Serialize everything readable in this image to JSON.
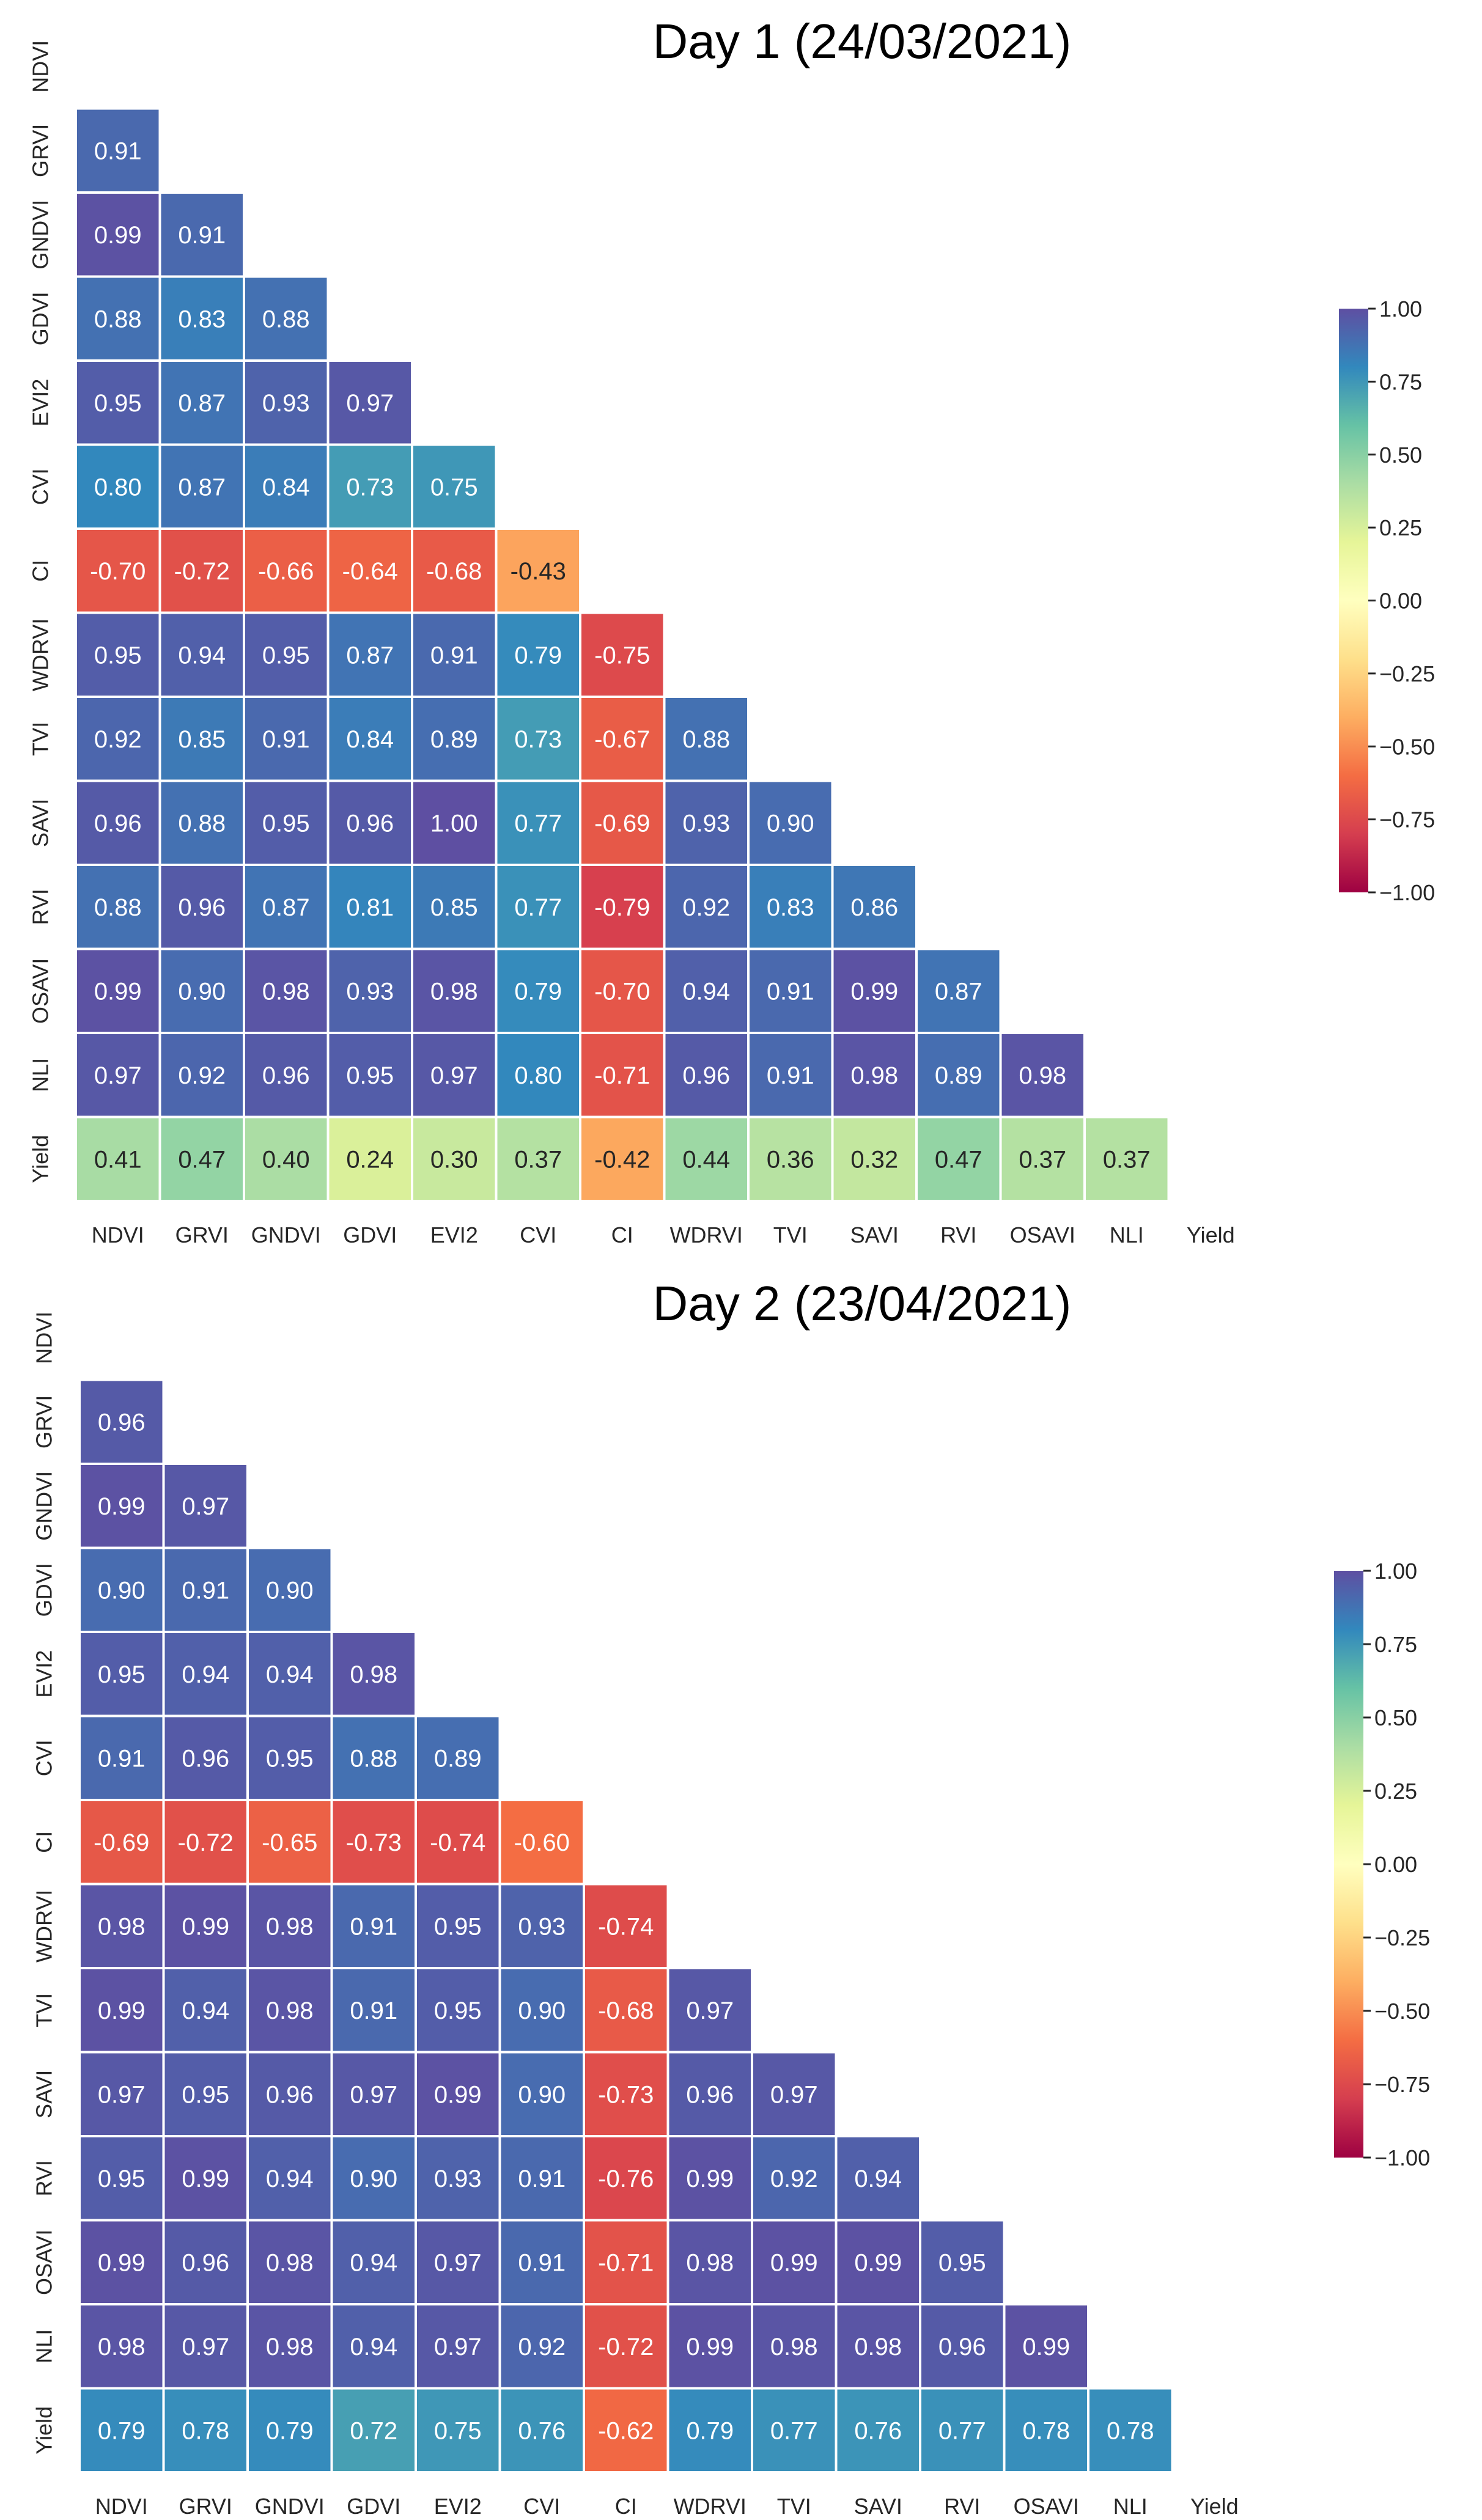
{
  "chart_data": [
    {
      "type": "heatmap",
      "title": "Day 1 (24/03/2021)",
      "labels": [
        "NDVI",
        "GRVI",
        "GNDVI",
        "GDVI",
        "EVI2",
        "CVI",
        "CI",
        "WDRVI",
        "TVI",
        "SAVI",
        "RVI",
        "OSAVI",
        "NLI",
        "Yield"
      ],
      "matrix": [
        [],
        [
          0.91
        ],
        [
          0.99,
          0.91
        ],
        [
          0.88,
          0.83,
          0.88
        ],
        [
          0.95,
          0.87,
          0.93,
          0.97
        ],
        [
          0.8,
          0.87,
          0.84,
          0.73,
          0.75
        ],
        [
          -0.7,
          -0.72,
          -0.66,
          -0.64,
          -0.68,
          -0.43
        ],
        [
          0.95,
          0.94,
          0.95,
          0.87,
          0.91,
          0.79,
          -0.75
        ],
        [
          0.92,
          0.85,
          0.91,
          0.84,
          0.89,
          0.73,
          -0.67,
          0.88
        ],
        [
          0.96,
          0.88,
          0.95,
          0.96,
          1.0,
          0.77,
          -0.69,
          0.93,
          0.9
        ],
        [
          0.88,
          0.96,
          0.87,
          0.81,
          0.85,
          0.77,
          -0.79,
          0.92,
          0.83,
          0.86
        ],
        [
          0.99,
          0.9,
          0.98,
          0.93,
          0.98,
          0.79,
          -0.7,
          0.94,
          0.91,
          0.99,
          0.87
        ],
        [
          0.97,
          0.92,
          0.96,
          0.95,
          0.97,
          0.8,
          -0.71,
          0.96,
          0.91,
          0.98,
          0.89,
          0.98
        ],
        [
          0.41,
          0.47,
          0.4,
          0.24,
          0.3,
          0.37,
          -0.42,
          0.44,
          0.36,
          0.32,
          0.47,
          0.37,
          0.37
        ]
      ],
      "colorbar": {
        "range": [
          -1,
          1
        ],
        "ticks": [
          "1.00",
          "0.75",
          "0.50",
          "0.25",
          "0.00",
          "−0.25",
          "−0.50",
          "−0.75",
          "−1.00"
        ]
      },
      "colormap": "Spectral"
    },
    {
      "type": "heatmap",
      "title": "Day 2 (23/04/2021)",
      "labels": [
        "NDVI",
        "GRVI",
        "GNDVI",
        "GDVI",
        "EVI2",
        "CVI",
        "CI",
        "WDRVI",
        "TVI",
        "SAVI",
        "RVI",
        "OSAVI",
        "NLI",
        "Yield"
      ],
      "matrix": [
        [],
        [
          0.96
        ],
        [
          0.99,
          0.97
        ],
        [
          0.9,
          0.91,
          0.9
        ],
        [
          0.95,
          0.94,
          0.94,
          0.98
        ],
        [
          0.91,
          0.96,
          0.95,
          0.88,
          0.89
        ],
        [
          -0.69,
          -0.72,
          -0.65,
          -0.73,
          -0.74,
          -0.6
        ],
        [
          0.98,
          0.99,
          0.98,
          0.91,
          0.95,
          0.93,
          -0.74
        ],
        [
          0.99,
          0.94,
          0.98,
          0.91,
          0.95,
          0.9,
          -0.68,
          0.97
        ],
        [
          0.97,
          0.95,
          0.96,
          0.97,
          0.99,
          0.9,
          -0.73,
          0.96,
          0.97
        ],
        [
          0.95,
          0.99,
          0.94,
          0.9,
          0.93,
          0.91,
          -0.76,
          0.99,
          0.92,
          0.94
        ],
        [
          0.99,
          0.96,
          0.98,
          0.94,
          0.97,
          0.91,
          -0.71,
          0.98,
          0.99,
          0.99,
          0.95
        ],
        [
          0.98,
          0.97,
          0.98,
          0.94,
          0.97,
          0.92,
          -0.72,
          0.99,
          0.98,
          0.98,
          0.96,
          0.99
        ],
        [
          0.79,
          0.78,
          0.79,
          0.72,
          0.75,
          0.76,
          -0.62,
          0.79,
          0.77,
          0.76,
          0.77,
          0.78,
          0.78
        ]
      ],
      "colorbar": {
        "range": [
          -1,
          1
        ],
        "ticks": [
          "1.00",
          "0.75",
          "0.50",
          "0.25",
          "0.00",
          "−0.25",
          "−0.50",
          "−0.75",
          "−1.00"
        ]
      },
      "colormap": "Spectral"
    }
  ]
}
